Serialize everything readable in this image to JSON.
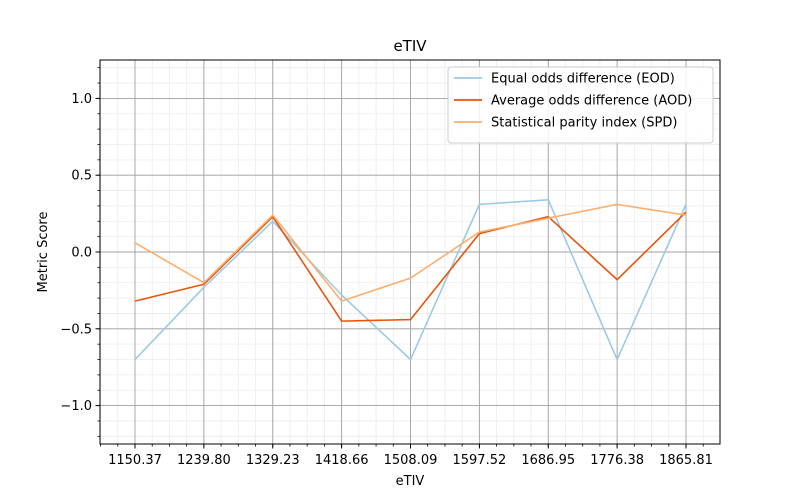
{
  "chart_data": {
    "type": "line",
    "title": "eTIV",
    "xlabel": "eTIV",
    "ylabel": "Metric Score",
    "categories": [
      "1150.37",
      "1239.80",
      "1329.23",
      "1418.66",
      "1508.09",
      "1597.52",
      "1686.95",
      "1776.38",
      "1865.81"
    ],
    "ylim": [
      -1.25,
      1.25
    ],
    "yticks": [
      -1.0,
      -0.5,
      0.0,
      0.5,
      1.0
    ],
    "ytick_labels": [
      "−1.0",
      "−0.5",
      "0.0",
      "0.5",
      "1.0"
    ],
    "grid": true,
    "minor_grid": true,
    "legend_position": "top-right",
    "series": [
      {
        "name": "Equal odds difference (EOD)",
        "color": "#9ecae1",
        "values": [
          -0.7,
          -0.23,
          0.2,
          -0.28,
          -0.7,
          0.31,
          0.34,
          -0.7,
          0.31
        ]
      },
      {
        "name": "Average odds difference (AOD)",
        "color": "#e6550d",
        "values": [
          -0.32,
          -0.21,
          0.23,
          -0.45,
          -0.44,
          0.12,
          0.23,
          -0.18,
          0.26
        ]
      },
      {
        "name": "Statistical parity index (SPD)",
        "color": "#fdae6b",
        "values": [
          0.06,
          -0.2,
          0.24,
          -0.32,
          -0.17,
          0.13,
          0.22,
          0.31,
          0.24
        ]
      }
    ]
  }
}
